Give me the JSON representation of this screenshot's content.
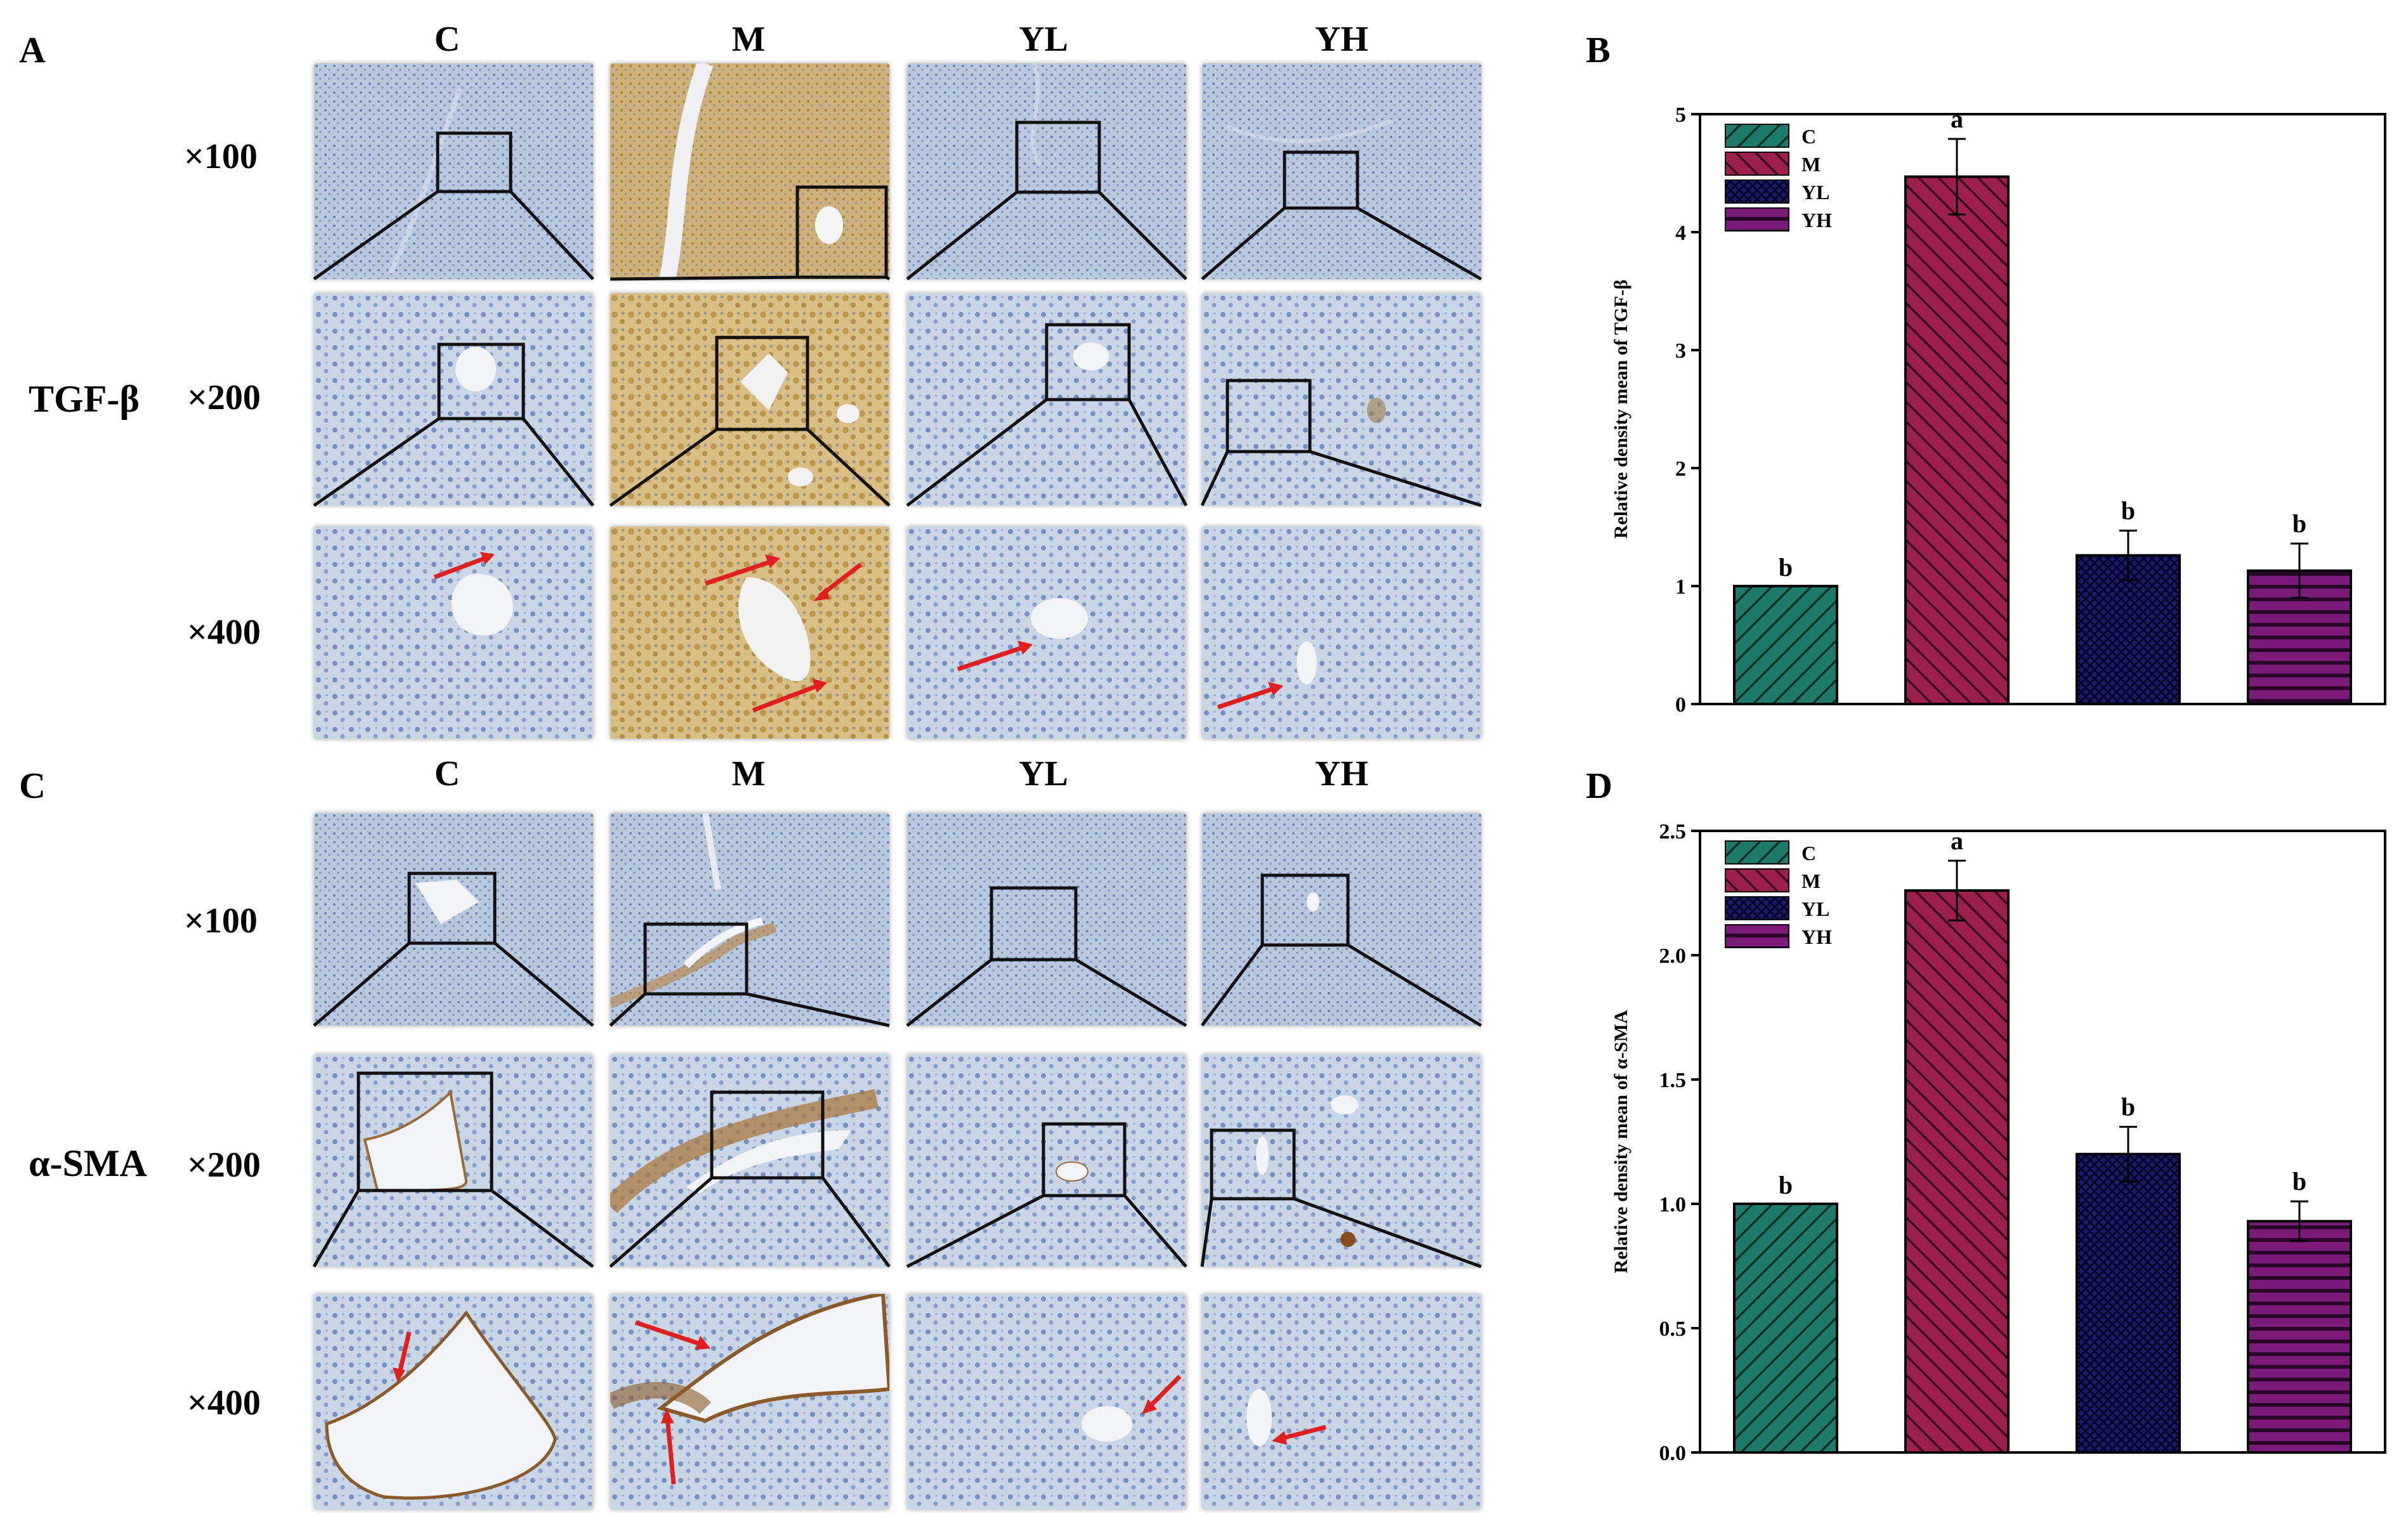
{
  "panels": {
    "A": "A",
    "B": "B",
    "C": "C",
    "D": "D"
  },
  "columns": [
    "C",
    "M",
    "YL",
    "YH"
  ],
  "magnifications": [
    "×100",
    "×200",
    "×400"
  ],
  "markers": {
    "top": "TGF-β",
    "bottom": "α-SMA"
  },
  "colors": {
    "C": "#1e7a6b",
    "M": "#9c1f4e",
    "YL": "#1a1a6e",
    "YH": "#7a1a7a",
    "tissue_blue": "#b8c8dc",
    "tissue_brown": "#c8a25a",
    "arrow": "#e02020"
  },
  "chart_data": [
    {
      "type": "bar",
      "panel": "B",
      "categories": [
        "C",
        "M",
        "YL",
        "YH"
      ],
      "values": [
        1.0,
        4.47,
        1.26,
        1.13
      ],
      "errors": [
        0.0,
        0.32,
        0.21,
        0.23
      ],
      "significance": [
        "b",
        "a",
        "b",
        "b"
      ],
      "ylabel": "Relative density mean of TGF-β",
      "ylim": [
        0,
        5
      ],
      "yticks": [
        0,
        1,
        2,
        3,
        4,
        5
      ],
      "ytick_labels": [
        "0",
        "1",
        "2",
        "3",
        "4",
        "5"
      ],
      "legend": [
        "C",
        "M",
        "YL",
        "YH"
      ],
      "legend_position": "top-left"
    },
    {
      "type": "bar",
      "panel": "D",
      "categories": [
        "C",
        "M",
        "YL",
        "YH"
      ],
      "values": [
        1.0,
        2.26,
        1.2,
        0.93
      ],
      "errors": [
        0.0,
        0.12,
        0.11,
        0.08
      ],
      "significance": [
        "b",
        "a",
        "b",
        "b"
      ],
      "ylabel": "Relative density mean of α-SMA",
      "ylim": [
        0,
        2.5
      ],
      "yticks": [
        0,
        0.5,
        1.0,
        1.5,
        2.0,
        2.5
      ],
      "ytick_labels": [
        "0.0",
        "0.5",
        "1.0",
        "1.5",
        "2.0",
        "2.5"
      ],
      "legend": [
        "C",
        "M",
        "YL",
        "YH"
      ],
      "legend_position": "top-left"
    }
  ]
}
